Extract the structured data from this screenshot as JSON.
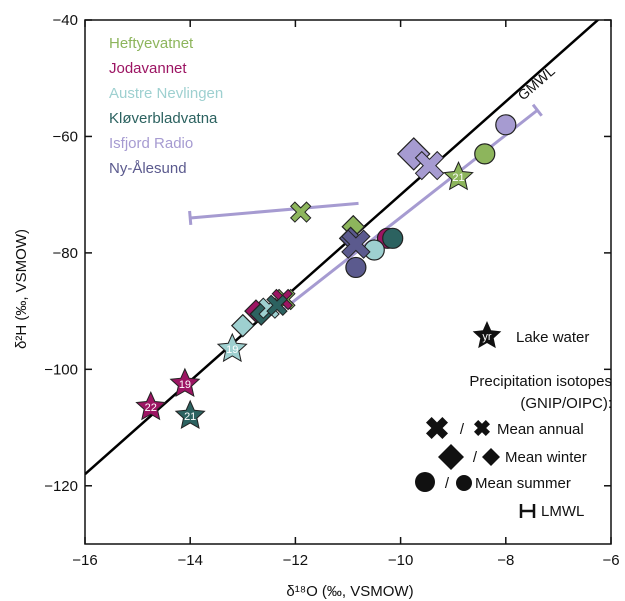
{
  "chart_data": {
    "type": "scatter",
    "xlabel": "δ¹⁸O (‰, VSMOW)",
    "ylabel": "δ²H (‰, VSMOW)",
    "xlim": [
      -16,
      -6
    ],
    "ylim": [
      -130,
      -40
    ],
    "x_ticks": [
      -16,
      -14,
      -12,
      -10,
      -8,
      -6
    ],
    "y_ticks": [
      -40,
      -60,
      -80,
      -100,
      -120
    ],
    "x_tick_labels": [
      "−16",
      "−14",
      "−12",
      "−10",
      "−8",
      "−6"
    ],
    "y_tick_labels": [
      "−40",
      "−60",
      "−80",
      "−100",
      "−120"
    ],
    "grid": false,
    "reference_line": {
      "label": "GMWL",
      "slope": 8,
      "intercept": 10,
      "color": "#000000"
    },
    "legend": {
      "placement": "top-left",
      "entries": [
        {
          "name": "Heftyevatnet",
          "color": "#8db55c"
        },
        {
          "name": "Jodavannet",
          "color": "#9c1563"
        },
        {
          "name": "Austre Nevlingen",
          "color": "#9ed0d0"
        },
        {
          "name": "Kløverbladvatna",
          "color": "#2c6260"
        },
        {
          "name": "Isfjord Radio",
          "color": "#a69bd1"
        },
        {
          "name": "Ny-Ålesund",
          "color": "#5b5a8e"
        }
      ]
    },
    "key": {
      "placement": "bottom-right",
      "lake_water": {
        "symbol_text": "yr",
        "label": "Lake water"
      },
      "precip_title_1": "Precipitation isotopes",
      "precip_title_2": "(GNIP/OIPC):",
      "separator": "/",
      "annual_label": "Mean annual",
      "winter_label": "Mean winter",
      "summer_label": "Mean summer",
      "lmwl_label": "LMWL"
    },
    "lmwl": [
      {
        "series": "Isfjord Radio",
        "x": [
          -12.2,
          -7.4
        ],
        "y": [
          -89.5,
          -55.5
        ],
        "color": "#a69bd1"
      },
      {
        "series": "Isfjord Radio",
        "x": [
          -10.8,
          -14.0
        ],
        "y": [
          -71.5,
          -74.0
        ],
        "color": "#a69bd1",
        "seg_only": true
      }
    ],
    "lake_water": [
      {
        "series": "Heftyevatnet",
        "x": -8.9,
        "y": -67,
        "label": "21",
        "color": "#8db55c"
      },
      {
        "series": "Jodavannet",
        "x": -14.1,
        "y": -102.5,
        "label": "19",
        "color": "#9c1563"
      },
      {
        "series": "Jodavannet",
        "x": -14.75,
        "y": -106.5,
        "label": "22",
        "color": "#9c1563"
      },
      {
        "series": "Austre Nevlingen",
        "x": -13.2,
        "y": -96.5,
        "label": "19",
        "color": "#9ed0d0"
      },
      {
        "series": "Kløverbladvatna",
        "x": -14.0,
        "y": -108.0,
        "label": "21",
        "color": "#2c6260"
      }
    ],
    "annual": [
      {
        "series": "Heftyevatnet",
        "x": -12.2,
        "y": -88,
        "color": "#8db55c"
      },
      {
        "series": "Heftyevatnet",
        "x": -11.9,
        "y": -73,
        "color": "#8db55c"
      },
      {
        "series": "Jodavannet",
        "x": -12.25,
        "y": -88,
        "color": "#9c1563"
      },
      {
        "series": "Austre Nevlingen",
        "x": -12.5,
        "y": -89.5,
        "color": "#9ed0d0"
      },
      {
        "series": "Kløverbladvatna",
        "x": -12.35,
        "y": -89,
        "color": "#2c6260"
      },
      {
        "series": "Isfjord Radio",
        "x": -9.45,
        "y": -65,
        "color": "#a69bd1"
      },
      {
        "series": "Ny-Ålesund",
        "x": -10.85,
        "y": -78.5,
        "color": "#5b5a8e"
      }
    ],
    "winter": [
      {
        "series": "Heftyevatnet",
        "x": -10.9,
        "y": -75.5,
        "color": "#8db55c"
      },
      {
        "series": "Jodavannet",
        "x": -12.75,
        "y": -90,
        "color": "#9c1563"
      },
      {
        "series": "Austre Nevlingen",
        "x": -13.0,
        "y": -92.5,
        "color": "#9ed0d0"
      },
      {
        "series": "Kløverbladvatna",
        "x": -12.65,
        "y": -90.5,
        "color": "#2c6260"
      },
      {
        "series": "Isfjord Radio",
        "x": -9.75,
        "y": -63,
        "color": "#a69bd1"
      },
      {
        "series": "Ny-Ålesund",
        "x": -10.95,
        "y": -77.5,
        "color": "#5b5a8e"
      }
    ],
    "summer": [
      {
        "series": "Heftyevatnet",
        "x": -8.4,
        "y": -63,
        "color": "#8db55c"
      },
      {
        "series": "Jodavannet",
        "x": -10.25,
        "y": -77.5,
        "color": "#9c1563"
      },
      {
        "series": "Austre Nevlingen",
        "x": -10.5,
        "y": -79.5,
        "color": "#9ed0d0"
      },
      {
        "series": "Kløverbladvatna",
        "x": -10.15,
        "y": -77.5,
        "color": "#2c6260"
      },
      {
        "series": "Isfjord Radio",
        "x": -8.0,
        "y": -58,
        "color": "#a69bd1"
      },
      {
        "series": "Ny-Ålesund",
        "x": -10.85,
        "y": -82.5,
        "color": "#5b5a8e"
      }
    ]
  }
}
